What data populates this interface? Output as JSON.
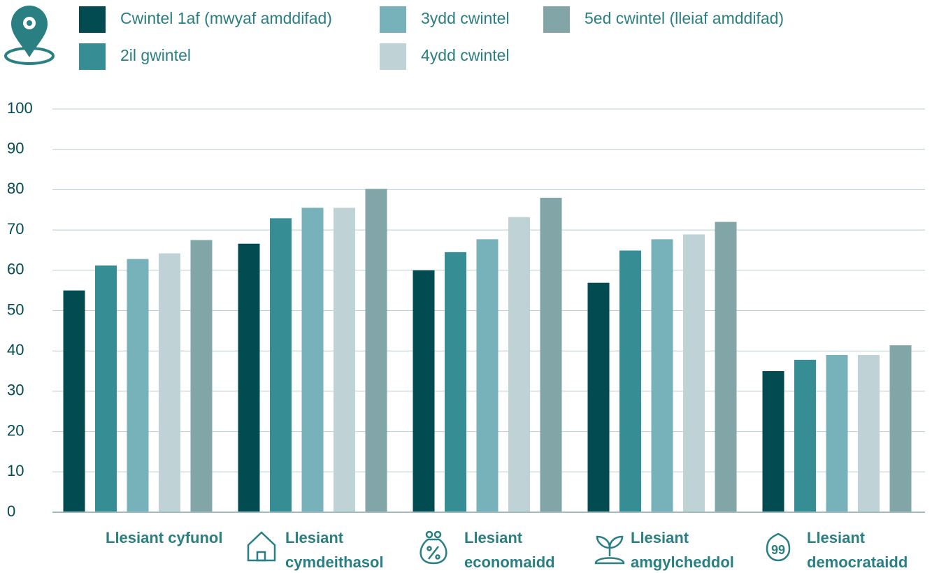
{
  "chart_data": {
    "type": "bar",
    "categories": [
      "Llesiant cyfunol",
      "Llesiant cymdeithasol",
      "Llesiant economaidd",
      "Llesiant amgylcheddol",
      "Llesiant democrataidd"
    ],
    "series": [
      {
        "name": "Cwintel 1af (mwyaf amddifad)",
        "color": "#024b51",
        "values": [
          55,
          66.6,
          60,
          56.9,
          35
        ]
      },
      {
        "name": "2il gwintel",
        "color": "#368d93",
        "values": [
          61.2,
          72.9,
          64.5,
          64.9,
          37.8
        ]
      },
      {
        "name": "3ydd cwintel",
        "color": "#77b2ba",
        "values": [
          62.8,
          75.5,
          67.7,
          67.7,
          39
        ]
      },
      {
        "name": "4ydd cwintel",
        "color": "#bfd3d7",
        "values": [
          64.2,
          75.5,
          73.2,
          68.9,
          39
        ]
      },
      {
        "name": "5ed cwintel (lleiaf amddifad)",
        "color": "#82a5a8",
        "values": [
          67.5,
          80.2,
          78,
          72,
          41.4
        ]
      }
    ],
    "ylim": [
      0,
      100
    ],
    "yticks": [
      0,
      10,
      20,
      30,
      40,
      50,
      60,
      70,
      80,
      90,
      100
    ],
    "grid": true
  }
}
